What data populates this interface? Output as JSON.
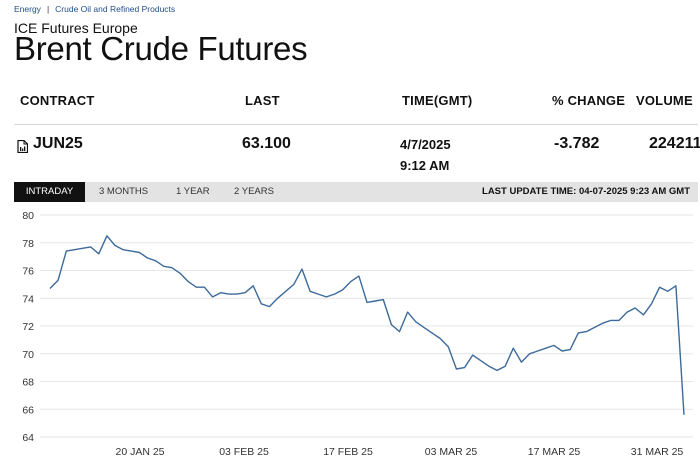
{
  "breadcrumb": {
    "item1": "Energy",
    "separator": "|",
    "item2": "Crude Oil and Refined Products"
  },
  "exchange": "ICE Futures Europe",
  "title": "Brent Crude Futures",
  "table": {
    "headers": {
      "contract": "CONTRACT",
      "last": "LAST",
      "time": "TIME(GMT)",
      "pct_change": "% CHANGE",
      "volume": "VOLUME"
    },
    "row": {
      "contract": "JUN25",
      "last": "63.100",
      "date": "4/7/2025",
      "time": "9:12 AM",
      "pct_change": "-3.782",
      "volume": "224211"
    }
  },
  "tabs": {
    "intraday": "INTRADAY",
    "m3": "3 MONTHS",
    "y1": "1 YEAR",
    "y2": "2 YEARS",
    "active": "INTRADAY"
  },
  "last_update": "LAST UPDATE TIME: 04-07-2025 9:23 AM GMT",
  "colors": {
    "line": "#3d6a9a",
    "grid": "#e6e6e6",
    "tab_active": "#111111",
    "tab_bar": "#e3e3e3"
  },
  "chart_data": {
    "type": "line",
    "x_tick_labels": [
      "20 JAN 25",
      "03 FEB 25",
      "17 FEB 25",
      "03 MAR 25",
      "17 MAR 25",
      "31 MAR 25"
    ],
    "ylim": [
      64,
      80
    ],
    "y_ticks": [
      64,
      66,
      68,
      70,
      72,
      74,
      76,
      78,
      80
    ],
    "grid": true,
    "series": [
      {
        "values": [
          74.7,
          75.3,
          77.4,
          77.5,
          77.6,
          77.7,
          77.2,
          78.5,
          77.8,
          77.5,
          77.4,
          77.3,
          76.9,
          76.7,
          76.3,
          76.2,
          75.8,
          75.2,
          74.8,
          74.8,
          74.1,
          74.4,
          74.3,
          74.3,
          74.4,
          74.9,
          73.6,
          73.4,
          74.0,
          74.5,
          75.0,
          76.1,
          74.5,
          74.3,
          74.1,
          74.3,
          74.6,
          75.2,
          75.6,
          73.7,
          73.8,
          73.9,
          72.1,
          71.6,
          73.0,
          72.3,
          71.9,
          71.5,
          71.1,
          70.5,
          68.9,
          69.0,
          69.9,
          69.5,
          69.1,
          68.8,
          69.1,
          70.4,
          69.4,
          70.0,
          70.2,
          70.4,
          70.6,
          70.2,
          70.3,
          71.5,
          71.6,
          71.9,
          72.2,
          72.4,
          72.4,
          73.0,
          73.3,
          72.8,
          73.6,
          74.8,
          74.5,
          74.9,
          65.6
        ]
      }
    ]
  }
}
